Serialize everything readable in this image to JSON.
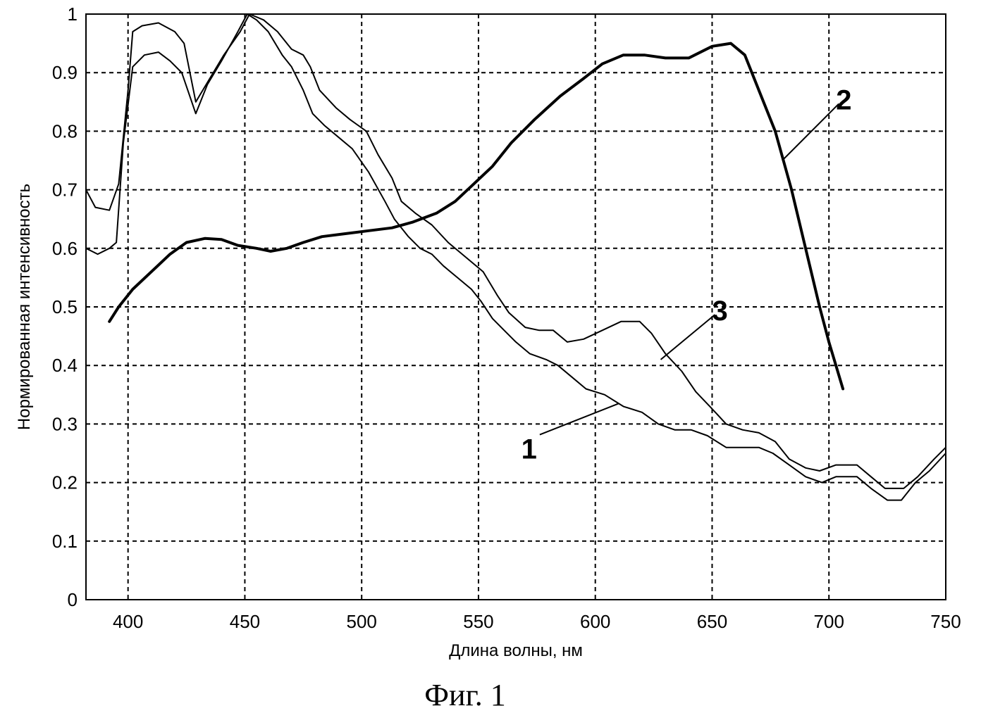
{
  "chart_data": {
    "type": "line",
    "xlabel": "Длина волны, нм",
    "ylabel": "Нормированная интенсивность",
    "xlim": [
      382,
      750
    ],
    "ylim": [
      0,
      1
    ],
    "x_ticks": [
      "400",
      "450",
      "500",
      "550",
      "600",
      "650",
      "700",
      "750"
    ],
    "y_ticks": [
      "0",
      "0.1",
      "0.2",
      "0.3",
      "0.4",
      "0.5",
      "0.6",
      "0.7",
      "0.8",
      "0.9",
      "1"
    ],
    "grid": true,
    "legend": "none",
    "series": [
      {
        "name": "1",
        "stroke": "#000000",
        "width": 2,
        "points": [
          [
            382,
            0.6
          ],
          [
            387,
            0.59
          ],
          [
            392,
            0.6
          ],
          [
            395,
            0.61
          ],
          [
            398,
            0.78
          ],
          [
            402,
            0.91
          ],
          [
            407,
            0.93
          ],
          [
            413,
            0.935
          ],
          [
            418,
            0.92
          ],
          [
            423,
            0.9
          ],
          [
            429,
            0.83
          ],
          [
            434,
            0.88
          ],
          [
            440,
            0.92
          ],
          [
            447,
            0.97
          ],
          [
            451,
            1.0
          ],
          [
            455,
            0.99
          ],
          [
            460,
            0.97
          ],
          [
            466,
            0.93
          ],
          [
            470,
            0.91
          ],
          [
            475,
            0.87
          ],
          [
            479,
            0.83
          ],
          [
            484,
            0.81
          ],
          [
            490,
            0.79
          ],
          [
            496,
            0.77
          ],
          [
            503,
            0.73
          ],
          [
            510,
            0.68
          ],
          [
            514,
            0.65
          ],
          [
            520,
            0.62
          ],
          [
            525,
            0.6
          ],
          [
            530,
            0.59
          ],
          [
            535,
            0.57
          ],
          [
            541,
            0.55
          ],
          [
            547,
            0.53
          ],
          [
            551,
            0.51
          ],
          [
            556,
            0.48
          ],
          [
            561,
            0.46
          ],
          [
            566,
            0.44
          ],
          [
            572,
            0.42
          ],
          [
            579,
            0.41
          ],
          [
            584,
            0.4
          ],
          [
            590,
            0.38
          ],
          [
            596,
            0.36
          ],
          [
            604,
            0.35
          ],
          [
            612,
            0.33
          ],
          [
            620,
            0.32
          ],
          [
            627,
            0.3
          ],
          [
            634,
            0.29
          ],
          [
            641,
            0.29
          ],
          [
            648,
            0.28
          ],
          [
            656,
            0.26
          ],
          [
            663,
            0.26
          ],
          [
            670,
            0.26
          ],
          [
            676,
            0.25
          ],
          [
            683,
            0.23
          ],
          [
            690,
            0.21
          ],
          [
            697,
            0.2
          ],
          [
            703,
            0.21
          ],
          [
            712,
            0.21
          ],
          [
            718,
            0.19
          ],
          [
            725,
            0.17
          ],
          [
            731,
            0.17
          ],
          [
            737,
            0.2
          ],
          [
            743,
            0.22
          ],
          [
            750,
            0.25
          ]
        ]
      },
      {
        "name": "2",
        "stroke": "#000000",
        "width": 4,
        "points": [
          [
            392,
            0.475
          ],
          [
            396,
            0.5
          ],
          [
            402,
            0.53
          ],
          [
            410,
            0.56
          ],
          [
            418,
            0.59
          ],
          [
            425,
            0.61
          ],
          [
            433,
            0.617
          ],
          [
            440,
            0.615
          ],
          [
            447,
            0.605
          ],
          [
            455,
            0.6
          ],
          [
            461,
            0.595
          ],
          [
            468,
            0.6
          ],
          [
            475,
            0.61
          ],
          [
            483,
            0.62
          ],
          [
            493,
            0.625
          ],
          [
            503,
            0.63
          ],
          [
            513,
            0.635
          ],
          [
            522,
            0.645
          ],
          [
            532,
            0.66
          ],
          [
            540,
            0.68
          ],
          [
            548,
            0.71
          ],
          [
            556,
            0.74
          ],
          [
            564,
            0.78
          ],
          [
            574,
            0.82
          ],
          [
            585,
            0.86
          ],
          [
            595,
            0.89
          ],
          [
            603,
            0.915
          ],
          [
            612,
            0.93
          ],
          [
            621,
            0.93
          ],
          [
            630,
            0.925
          ],
          [
            640,
            0.925
          ],
          [
            650,
            0.945
          ],
          [
            658,
            0.95
          ],
          [
            664,
            0.93
          ],
          [
            670,
            0.87
          ],
          [
            677,
            0.8
          ],
          [
            684,
            0.7
          ],
          [
            690,
            0.6
          ],
          [
            696,
            0.5
          ],
          [
            700,
            0.44
          ],
          [
            706,
            0.36
          ]
        ]
      },
      {
        "name": "3",
        "stroke": "#000000",
        "width": 2,
        "points": [
          [
            382,
            0.7
          ],
          [
            386,
            0.67
          ],
          [
            392,
            0.665
          ],
          [
            396,
            0.71
          ],
          [
            400,
            0.87
          ],
          [
            402,
            0.97
          ],
          [
            406,
            0.98
          ],
          [
            413,
            0.985
          ],
          [
            420,
            0.97
          ],
          [
            424,
            0.95
          ],
          [
            429,
            0.85
          ],
          [
            435,
            0.89
          ],
          [
            441,
            0.93
          ],
          [
            448,
            0.97
          ],
          [
            452,
            1.0
          ],
          [
            458,
            0.99
          ],
          [
            464,
            0.97
          ],
          [
            470,
            0.94
          ],
          [
            475,
            0.93
          ],
          [
            478,
            0.91
          ],
          [
            482,
            0.87
          ],
          [
            489,
            0.84
          ],
          [
            495,
            0.82
          ],
          [
            502,
            0.8
          ],
          [
            507,
            0.76
          ],
          [
            513,
            0.72
          ],
          [
            517,
            0.68
          ],
          [
            523,
            0.66
          ],
          [
            530,
            0.64
          ],
          [
            537,
            0.61
          ],
          [
            543,
            0.59
          ],
          [
            552,
            0.56
          ],
          [
            558,
            0.52
          ],
          [
            563,
            0.49
          ],
          [
            570,
            0.465
          ],
          [
            576,
            0.46
          ],
          [
            582,
            0.46
          ],
          [
            588,
            0.44
          ],
          [
            595,
            0.445
          ],
          [
            603,
            0.46
          ],
          [
            611,
            0.475
          ],
          [
            619,
            0.475
          ],
          [
            624,
            0.455
          ],
          [
            630,
            0.42
          ],
          [
            637,
            0.39
          ],
          [
            643,
            0.355
          ],
          [
            649,
            0.33
          ],
          [
            656,
            0.3
          ],
          [
            663,
            0.29
          ],
          [
            670,
            0.285
          ],
          [
            677,
            0.27
          ],
          [
            683,
            0.24
          ],
          [
            690,
            0.225
          ],
          [
            696,
            0.22
          ],
          [
            703,
            0.23
          ],
          [
            712,
            0.23
          ],
          [
            718,
            0.21
          ],
          [
            724,
            0.19
          ],
          [
            732,
            0.19
          ],
          [
            738,
            0.21
          ],
          [
            745,
            0.24
          ],
          [
            750,
            0.26
          ]
        ]
      }
    ],
    "annotations": [
      {
        "text": "1",
        "series": "1",
        "anchor": [
          610,
          0.335
        ],
        "label_at": [
          572,
          0.265
        ]
      },
      {
        "text": "2",
        "series": "2",
        "anchor": [
          680,
          0.75
        ],
        "label_at": [
          700,
          0.83
        ]
      },
      {
        "text": "3",
        "series": "3",
        "anchor": [
          628,
          0.41
        ],
        "label_at": [
          647,
          0.47
        ]
      }
    ]
  },
  "caption": "Фиг. 1"
}
